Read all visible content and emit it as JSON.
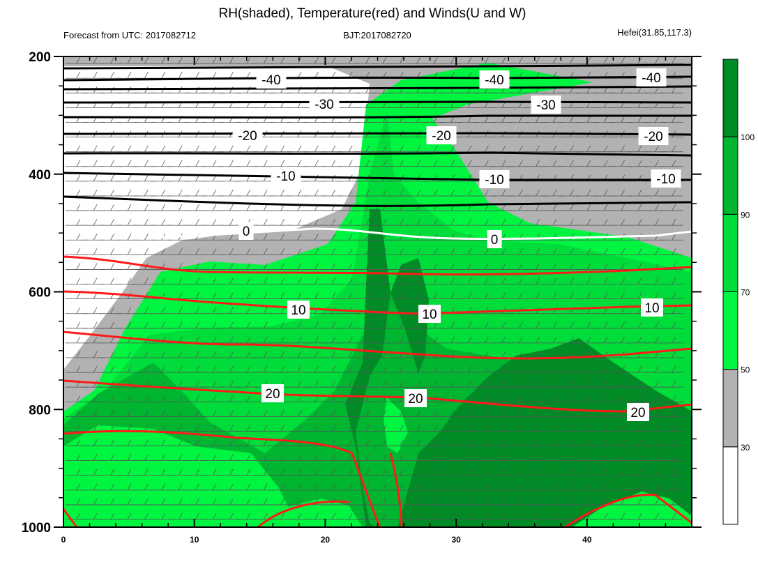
{
  "chart_data": {
    "type": "contour",
    "title": "RH(shaded), Temperature(red) and Winds(U and W)",
    "subtitle_left": "Forecast from UTC: 2017082712",
    "subtitle_center": "BJT:2017082720",
    "subtitle_right": "Hefei(31.85,117.3)",
    "x_ticks": [
      0,
      10,
      20,
      30,
      40
    ],
    "xlim": [
      0,
      48
    ],
    "y_ticks": [
      200,
      400,
      600,
      800,
      1000
    ],
    "ylim": [
      1000,
      200
    ],
    "colorbar": {
      "levels": [
        30,
        50,
        70,
        90,
        100
      ],
      "colors": [
        "#ffffff",
        "#b2b2b2",
        "#00f540",
        "#00dc3a",
        "#00b631",
        "#008b27"
      ]
    },
    "contour_labels": {
      "cold": [
        "-40",
        "-30",
        "-20",
        "-10"
      ],
      "zero": "0",
      "warm": [
        "10",
        "20"
      ]
    }
  }
}
